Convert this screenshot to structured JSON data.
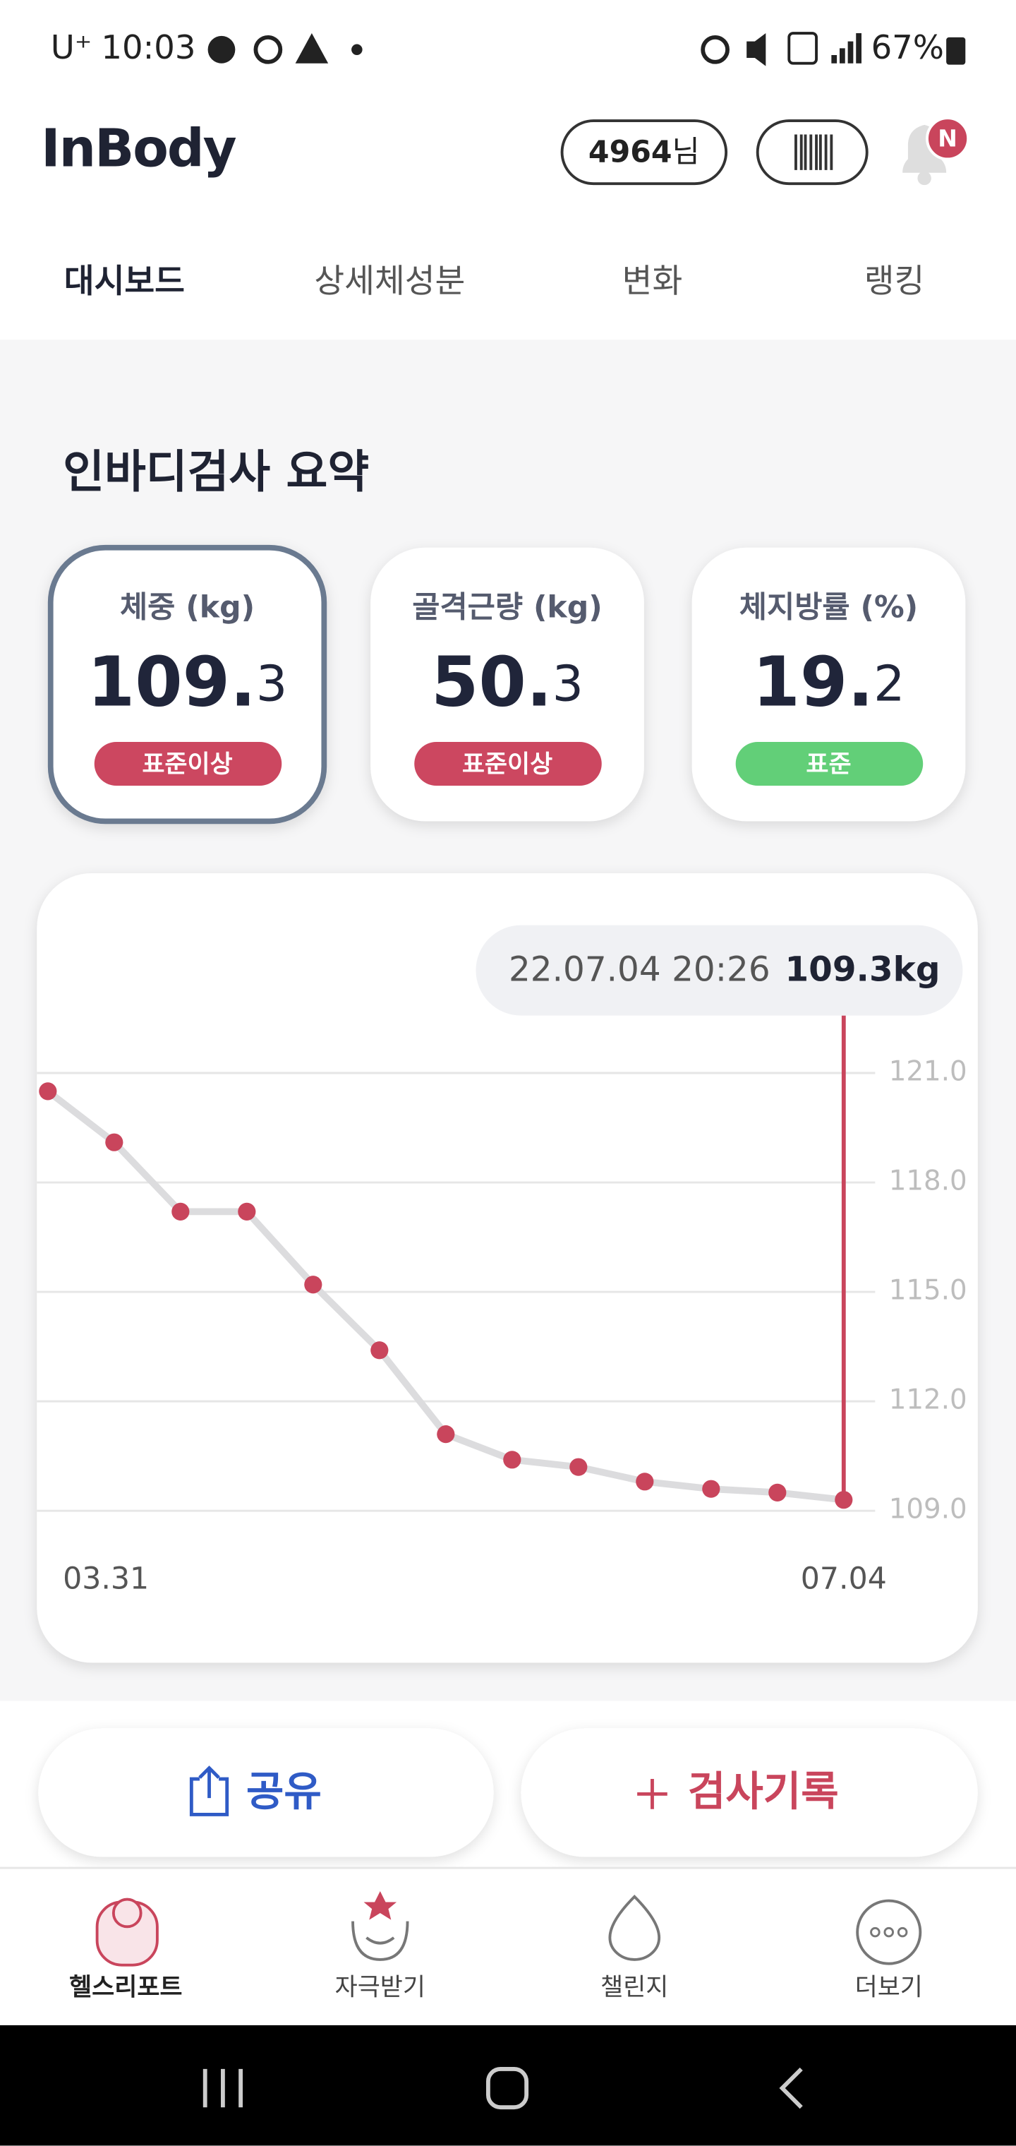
{
  "status_bar": {
    "carrier": "U⁺",
    "time": "10:03",
    "battery": "67%"
  },
  "header": {
    "logo": "InBody",
    "user_number": "4964",
    "user_suffix": "님",
    "notification_badge": "N"
  },
  "tabs": [
    "대시보드",
    "상세체성분",
    "변화",
    "랭킹"
  ],
  "section_title": "인바디검사 요약",
  "cards": [
    {
      "label": "체중 (kg)",
      "value_int": "109.",
      "value_dec": "3",
      "status": "표준이상",
      "status_color": "#cc4760",
      "selected": true
    },
    {
      "label": "골격근량 (kg)",
      "value_int": "50.",
      "value_dec": "3",
      "status": "표준이상",
      "status_color": "#cc4760",
      "selected": false
    },
    {
      "label": "체지방률 (%)",
      "value_int": "19.",
      "value_dec": "2",
      "status": "표준",
      "status_color": "#62cf78",
      "selected": false
    }
  ],
  "chart_data": {
    "type": "line",
    "categories": [
      "03.31",
      null,
      null,
      null,
      null,
      null,
      null,
      null,
      null,
      null,
      null,
      null,
      "07.04"
    ],
    "values": [
      120.5,
      119.1,
      117.2,
      117.2,
      115.2,
      113.4,
      111.1,
      110.4,
      110.2,
      109.8,
      109.6,
      109.5,
      109.3
    ],
    "line_color": "#dcdcde",
    "point_color": "#c9455c",
    "ylim": [
      108.5,
      121.5
    ],
    "yticks": [
      {
        "value": 109,
        "label": "109.0"
      },
      {
        "value": 112,
        "label": "112.0"
      },
      {
        "value": 115,
        "label": "115.0"
      },
      {
        "value": 118,
        "label": "118.0"
      },
      {
        "value": 121,
        "label": "121.0"
      }
    ],
    "grid": true,
    "highlight_index": 12,
    "tooltip": {
      "date": "22.07.04 20:26",
      "value": "109.3kg"
    }
  },
  "buttons": [
    "공유",
    "검사기록"
  ],
  "bottom_nav": [
    "헬스리포트",
    "자극받기",
    "챌린지",
    "더보기"
  ]
}
